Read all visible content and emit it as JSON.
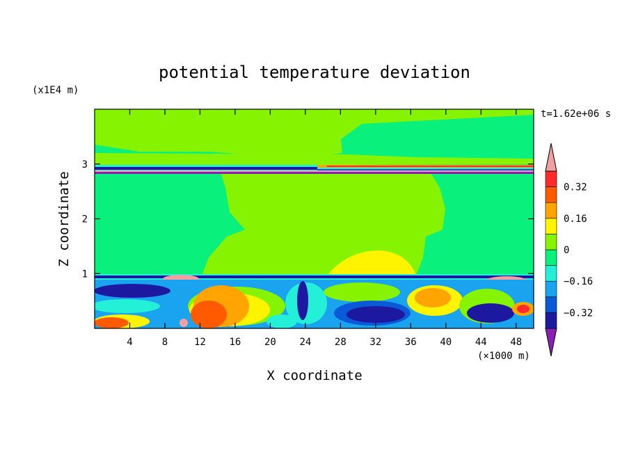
{
  "chart_data": {
    "type": "heatmap",
    "title": "potential temperature deviation",
    "xlabel": "X coordinate",
    "ylabel": "Z coordinate",
    "x_unit": "(×1000 m)",
    "y_unit": "(x1E4 m)",
    "time_label": "t=1.62e+06 s",
    "xlim": [
      0,
      50
    ],
    "ylim": [
      0,
      4
    ],
    "x_ticks": [
      4,
      8,
      12,
      16,
      20,
      24,
      28,
      32,
      36,
      40,
      44,
      48
    ],
    "y_ticks": [
      1,
      2,
      3
    ],
    "colorbar": {
      "levels": [
        -0.4,
        -0.32,
        -0.24,
        -0.16,
        -0.08,
        0,
        0.08,
        0.16,
        0.24,
        0.32,
        0.4
      ],
      "colors": [
        "#8a1fb4",
        "#1c18a0",
        "#0a5ad8",
        "#1aa4f0",
        "#24f0d8",
        "#09f07c",
        "#86f400",
        "#fff400",
        "#ffa400",
        "#ff5a00",
        "#ff2a2a",
        "#f0a0a0"
      ],
      "labels": [
        {
          "value": 0.32,
          "text": "0.32"
        },
        {
          "value": 0.16,
          "text": "0.16"
        },
        {
          "value": 0,
          "text": "0"
        },
        {
          "value": -0.16,
          "text": "−0.16"
        },
        {
          "value": -0.32,
          "text": "−0.32"
        }
      ]
    },
    "regions": {
      "upper_band_z": [
        2.8,
        3.0
      ],
      "boundary_layer_top_z": 0.97,
      "warm_plume_x": [
        20,
        46
      ],
      "yellow_dome_x": [
        30,
        42
      ],
      "yellow_dome_top_z": 1.4
    }
  }
}
